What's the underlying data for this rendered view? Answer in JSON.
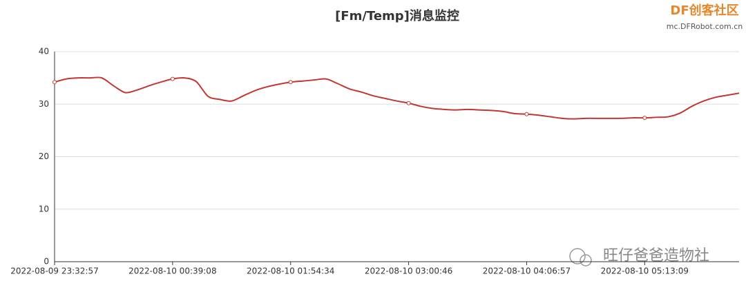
{
  "chart_data": {
    "type": "line",
    "title": "[Fm/Temp]消息监控",
    "categories": [
      "2022-08-09 23:32:57",
      null,
      null,
      null,
      null,
      null,
      null,
      null,
      null,
      null,
      "2022-08-10 00:39:08",
      null,
      null,
      null,
      null,
      null,
      null,
      null,
      null,
      null,
      "2022-08-10 01:54:34",
      null,
      null,
      null,
      null,
      null,
      null,
      null,
      null,
      null,
      "2022-08-10 03:00:46",
      null,
      null,
      null,
      null,
      null,
      null,
      null,
      null,
      null,
      "2022-08-10 04:06:57",
      null,
      null,
      null,
      null,
      null,
      null,
      null,
      null,
      null,
      "2022-08-10 05:13:09",
      null,
      null,
      null,
      null,
      null,
      null,
      null,
      null
    ],
    "series": [
      {
        "name": "Temp",
        "color": "#c23531",
        "values": [
          34.2,
          34.8,
          35.0,
          35.0,
          35.0,
          33.5,
          32.2,
          32.7,
          33.5,
          34.2,
          34.8,
          35.0,
          34.3,
          31.5,
          30.9,
          30.6,
          31.6,
          32.6,
          33.3,
          33.8,
          34.2,
          34.4,
          34.6,
          34.8,
          33.9,
          32.9,
          32.3,
          31.6,
          31.1,
          30.6,
          30.2,
          29.6,
          29.2,
          29.0,
          28.9,
          29.0,
          28.9,
          28.8,
          28.6,
          28.2,
          28.1,
          27.9,
          27.6,
          27.3,
          27.2,
          27.3,
          27.3,
          27.3,
          27.3,
          27.4,
          27.4,
          27.5,
          27.6,
          28.3,
          29.6,
          30.6,
          31.3,
          31.7,
          32.1
        ]
      }
    ],
    "ylim": [
      0,
      40
    ],
    "yticks": [
      0,
      10,
      20,
      30,
      40
    ],
    "grid": true
  },
  "watermarks": {
    "brand": "DF创客社区",
    "site": "mc.DFRobot.com.cn",
    "account": "旺仔爸爸造物社"
  }
}
